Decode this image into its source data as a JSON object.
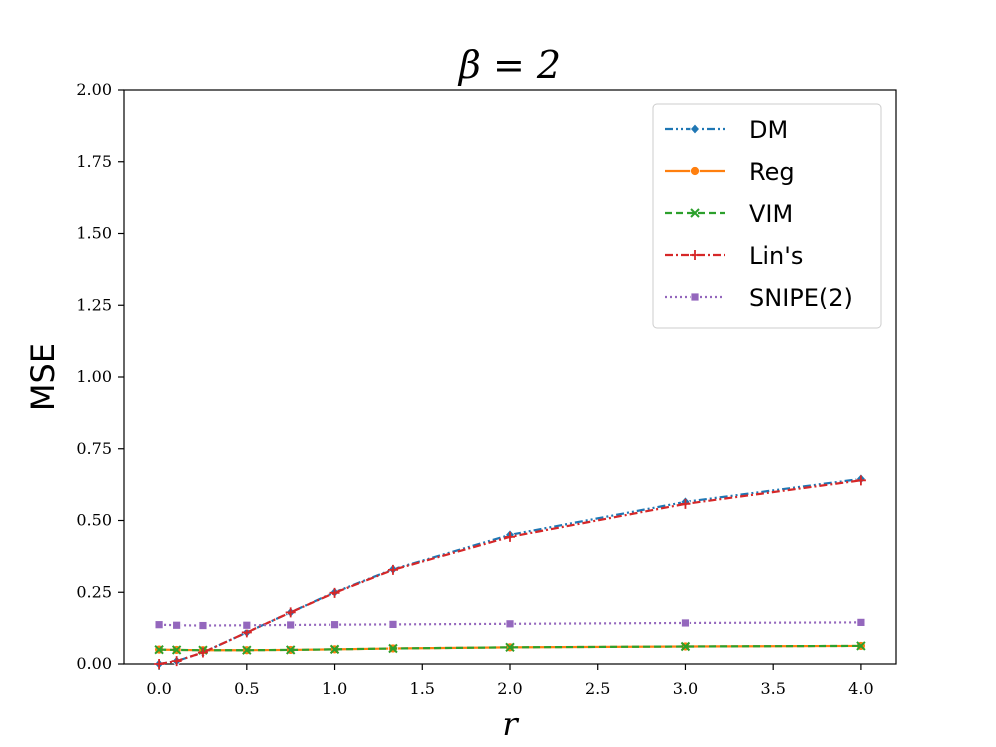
{
  "chart_data": {
    "type": "line",
    "title": "β = 2",
    "xlabel": "r",
    "ylabel": "MSE",
    "xlim": [
      -0.2,
      4.2
    ],
    "ylim": [
      0.0,
      2.0
    ],
    "xticks": [
      "0.0",
      "0.5",
      "1.0",
      "1.5",
      "2.0",
      "2.5",
      "3.0",
      "3.5",
      "4.0"
    ],
    "yticks": [
      "0.00",
      "0.25",
      "0.50",
      "0.75",
      "1.00",
      "1.25",
      "1.50",
      "1.75",
      "2.00"
    ],
    "grid": false,
    "legend_position": "top-right",
    "x": [
      0.0,
      0.1,
      0.25,
      0.5,
      0.75,
      1.0,
      1.333,
      2.0,
      3.0,
      4.0
    ],
    "series": [
      {
        "name": "DM",
        "color": "#1f77b4",
        "marker": "diamond",
        "dash": "dashdotdot",
        "values": [
          0.0,
          0.01,
          0.04,
          0.11,
          0.18,
          0.25,
          0.33,
          0.45,
          0.565,
          0.645
        ]
      },
      {
        "name": "Reg",
        "color": "#ff7f0e",
        "marker": "circle",
        "dash": "solid",
        "values": [
          0.05,
          0.049,
          0.048,
          0.048,
          0.049,
          0.051,
          0.054,
          0.058,
          0.061,
          0.063
        ]
      },
      {
        "name": "VIM",
        "color": "#2ca02c",
        "marker": "x",
        "dash": "dashed",
        "values": [
          0.05,
          0.049,
          0.048,
          0.048,
          0.049,
          0.051,
          0.054,
          0.058,
          0.061,
          0.063
        ]
      },
      {
        "name": "Lin's",
        "color": "#d62728",
        "marker": "plus",
        "dash": "dashdot",
        "values": [
          0.0,
          0.01,
          0.04,
          0.11,
          0.18,
          0.248,
          0.328,
          0.443,
          0.558,
          0.64
        ]
      },
      {
        "name": "SNIPE(2)",
        "color": "#9467bd",
        "marker": "square",
        "dash": "dotted",
        "values": [
          0.137,
          0.135,
          0.134,
          0.135,
          0.136,
          0.137,
          0.138,
          0.14,
          0.143,
          0.145
        ]
      }
    ]
  }
}
